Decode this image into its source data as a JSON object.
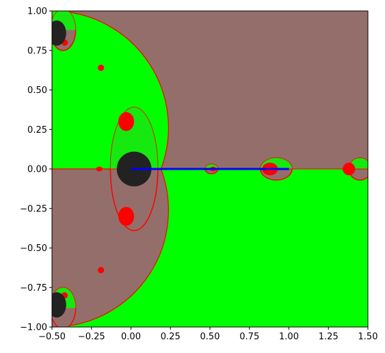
{
  "chart_data": {
    "type": "heatmap",
    "title": "",
    "xlabel": "",
    "ylabel": "",
    "xlim": [
      -0.5,
      1.5
    ],
    "ylim": [
      -1.0,
      1.0
    ],
    "x_ticks": [
      -0.5,
      -0.25,
      0.0,
      0.25,
      0.5,
      0.75,
      1.0,
      1.25,
      1.5
    ],
    "x_tick_labels": [
      "−0.50",
      "−0.25",
      "0.00",
      "0.25",
      "0.50",
      "0.75",
      "1.00",
      "1.25",
      "1.50"
    ],
    "y_ticks": [
      1.0,
      0.75,
      0.5,
      0.25,
      0.0,
      -0.25,
      -0.5,
      -0.75,
      -1.0
    ],
    "y_tick_labels": [
      "1.00",
      "0.75",
      "0.50",
      "0.25",
      "0.00",
      "−0.25",
      "−0.50",
      "−0.75",
      "−1.00"
    ],
    "grid": false,
    "colors": {
      "region_upper": "#946e6a",
      "region_green": "#00ff00",
      "region_red": "#ff0000",
      "region_black": "#222222",
      "line": "#0000ff"
    },
    "segment": {
      "x": [
        0.0,
        1.0
      ],
      "y": [
        0.0,
        0.0
      ],
      "color": "#0000ff"
    },
    "black_blobs": [
      {
        "x": 0.02,
        "y": 0.0,
        "rx": 0.11,
        "ry": 0.11
      },
      {
        "x": -0.47,
        "y": 0.86,
        "rx": 0.06,
        "ry": 0.08
      },
      {
        "x": -0.47,
        "y": -0.86,
        "rx": 0.06,
        "ry": 0.08
      }
    ],
    "red_blobs": [
      {
        "x": -0.03,
        "y": 0.3,
        "rx": 0.05,
        "ry": 0.06
      },
      {
        "x": -0.03,
        "y": -0.3,
        "rx": 0.05,
        "ry": 0.06
      },
      {
        "x": 0.88,
        "y": 0.0,
        "rx": 0.05,
        "ry": 0.04
      },
      {
        "x": 1.38,
        "y": 0.0,
        "rx": 0.04,
        "ry": 0.04
      },
      {
        "x": 0.52,
        "y": 0.0,
        "rx": 0.02,
        "ry": 0.015
      },
      {
        "x": -0.42,
        "y": 0.8,
        "rx": 0.02,
        "ry": 0.02
      },
      {
        "x": -0.42,
        "y": -0.8,
        "rx": 0.02,
        "ry": 0.02
      },
      {
        "x": -0.19,
        "y": 0.64,
        "rx": 0.02,
        "ry": 0.02
      },
      {
        "x": -0.19,
        "y": -0.64,
        "rx": 0.02,
        "ry": 0.02
      },
      {
        "x": -0.2,
        "y": 0.0,
        "rx": 0.02,
        "ry": 0.015
      }
    ],
    "bubbles": [
      {
        "x": 0.02,
        "y": 0.0,
        "rx": 0.15,
        "ry": 0.39
      },
      {
        "x": 0.92,
        "y": 0.0,
        "rx": 0.1,
        "ry": 0.07
      },
      {
        "x": 1.45,
        "y": 0.0,
        "rx": 0.07,
        "ry": 0.07
      },
      {
        "x": 0.51,
        "y": 0.0,
        "rx": 0.04,
        "ry": 0.03
      },
      {
        "x": -0.43,
        "y": 0.88,
        "rx": 0.08,
        "ry": 0.13
      },
      {
        "x": -0.43,
        "y": -0.88,
        "rx": 0.08,
        "ry": 0.13
      }
    ]
  }
}
